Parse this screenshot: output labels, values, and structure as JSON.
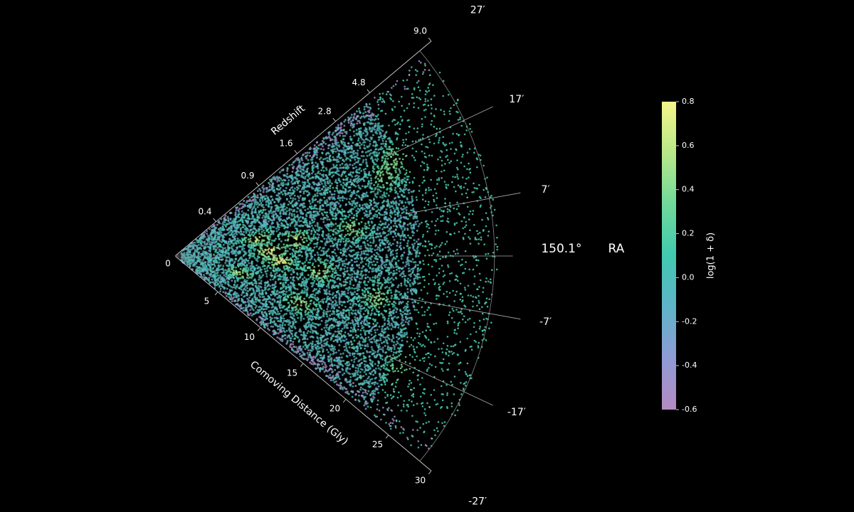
{
  "chart_data": {
    "type": "scatter",
    "title": "",
    "center_label": "150.1°",
    "ra_label": "RA",
    "axis_top_label": "Redshift",
    "axis_bottom_label": "Comoving Distance (Gly)",
    "redshift_ticks": [
      "0.4",
      "0.9",
      "1.6",
      "2.8",
      "4.8",
      "9.0"
    ],
    "redshift_tick_distance_gly": [
      4.8,
      9.8,
      14.3,
      18.8,
      22.8,
      30.0
    ],
    "distance_ticks": [
      "0",
      "5",
      "10",
      "15",
      "20",
      "25",
      "30"
    ],
    "distance_tick_values": [
      0,
      5,
      10,
      15,
      20,
      25,
      30
    ],
    "dec_ticks": [
      "27′",
      "17′",
      "7′",
      "-7′",
      "-17′",
      "-27′"
    ],
    "dec_tick_values_arcmin": [
      27,
      17,
      7,
      -7,
      -17,
      -27
    ],
    "distance_range_gly": [
      0,
      30
    ],
    "dec_range_arcmin": [
      -27,
      27
    ],
    "colorbar": {
      "label": "log(1 + δ)",
      "ticks": [
        "0.8",
        "0.6",
        "0.4",
        "0.2",
        "0.0",
        "-0.2",
        "-0.4",
        "-0.6"
      ],
      "tick_values": [
        0.8,
        0.6,
        0.4,
        0.2,
        0.0,
        -0.2,
        -0.4,
        -0.6
      ],
      "range": [
        -0.6,
        0.8
      ],
      "colors": [
        "#b58ac2",
        "#8f9bd6",
        "#5fb3c8",
        "#42c9b0",
        "#6fd99a",
        "#b8e88a",
        "#f4f58a"
      ]
    },
    "density_profile": {
      "bright_clumps": [
        {
          "r_gly": 8.5,
          "dec_arcmin": 2,
          "value": 0.8
        },
        {
          "r_gly": 9.5,
          "dec_arcmin": -2,
          "value": 0.75
        },
        {
          "r_gly": 7.5,
          "dec_arcmin": 8,
          "value": 0.7
        },
        {
          "r_gly": 11.0,
          "dec_arcmin": 5,
          "value": 0.65
        },
        {
          "r_gly": 13.0,
          "dec_arcmin": -4,
          "value": 0.6
        },
        {
          "r_gly": 6.0,
          "dec_arcmin": -10,
          "value": 0.6
        },
        {
          "r_gly": 12.0,
          "dec_arcmin": -14,
          "value": 0.55
        },
        {
          "r_gly": 16.0,
          "dec_arcmin": 6,
          "value": 0.5
        },
        {
          "r_gly": 18.5,
          "dec_arcmin": -8,
          "value": 0.5
        },
        {
          "r_gly": 20.0,
          "dec_arcmin": 14,
          "value": 0.45
        },
        {
          "r_gly": 21.5,
          "dec_arcmin": 16,
          "value": 0.45
        },
        {
          "r_gly": 22.5,
          "dec_arcmin": -18,
          "value": 0.4
        }
      ],
      "max_dense_distance_gly": 22,
      "sparse_tail_distance_gly": 29
    }
  }
}
